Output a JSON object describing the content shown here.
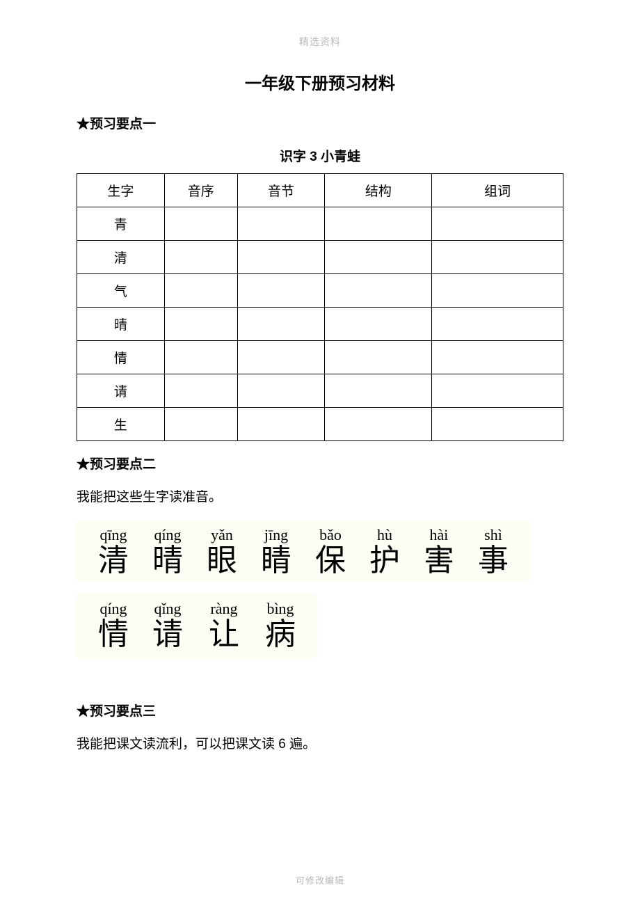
{
  "header_watermark": "精选资料",
  "footer_watermark": "可修改编辑",
  "doc_title": "一年级下册预习材料",
  "section1_heading": "★预习要点一",
  "lesson_title": "识字 3  小青蛙",
  "table": {
    "columns": [
      "生字",
      "音序",
      "音节",
      "结构",
      "组词"
    ],
    "rows": [
      [
        "青",
        "",
        "",
        "",
        ""
      ],
      [
        "清",
        "",
        "",
        "",
        ""
      ],
      [
        "气",
        "",
        "",
        "",
        ""
      ],
      [
        "晴",
        "",
        "",
        "",
        ""
      ],
      [
        "情",
        "",
        "",
        "",
        ""
      ],
      [
        "请",
        "",
        "",
        "",
        ""
      ],
      [
        "生",
        "",
        "",
        "",
        ""
      ]
    ],
    "border_color": "#000000",
    "cell_fontsize": 19
  },
  "section2_heading": "★预习要点二",
  "section2_text": "我能把这些生字读准音。",
  "pinyin_block": {
    "background_color": "#fdfdf3",
    "pinyin_color": "#000000",
    "hanzi_color": "#000000",
    "pinyin_fontsize": 22,
    "hanzi_fontsize": 44,
    "row1": [
      {
        "py": "qīng",
        "hz": "清"
      },
      {
        "py": "qíng",
        "hz": "晴"
      },
      {
        "py": "yǎn",
        "hz": "眼"
      },
      {
        "py": "jīng",
        "hz": "睛"
      },
      {
        "py": "bǎo",
        "hz": "保"
      },
      {
        "py": "hù",
        "hz": "护"
      },
      {
        "py": "hài",
        "hz": "害"
      },
      {
        "py": "shì",
        "hz": "事"
      }
    ],
    "row2": [
      {
        "py": "qíng",
        "hz": "情"
      },
      {
        "py": "qǐng",
        "hz": "请"
      },
      {
        "py": "ràng",
        "hz": "让"
      },
      {
        "py": "bìng",
        "hz": "病"
      }
    ]
  },
  "section3_heading": "★预习要点三",
  "section3_text": "我能把课文读流利，可以把课文读 6 遍。",
  "colors": {
    "page_bg": "#ffffff",
    "text": "#000000",
    "watermark": "#b8b8b8"
  }
}
